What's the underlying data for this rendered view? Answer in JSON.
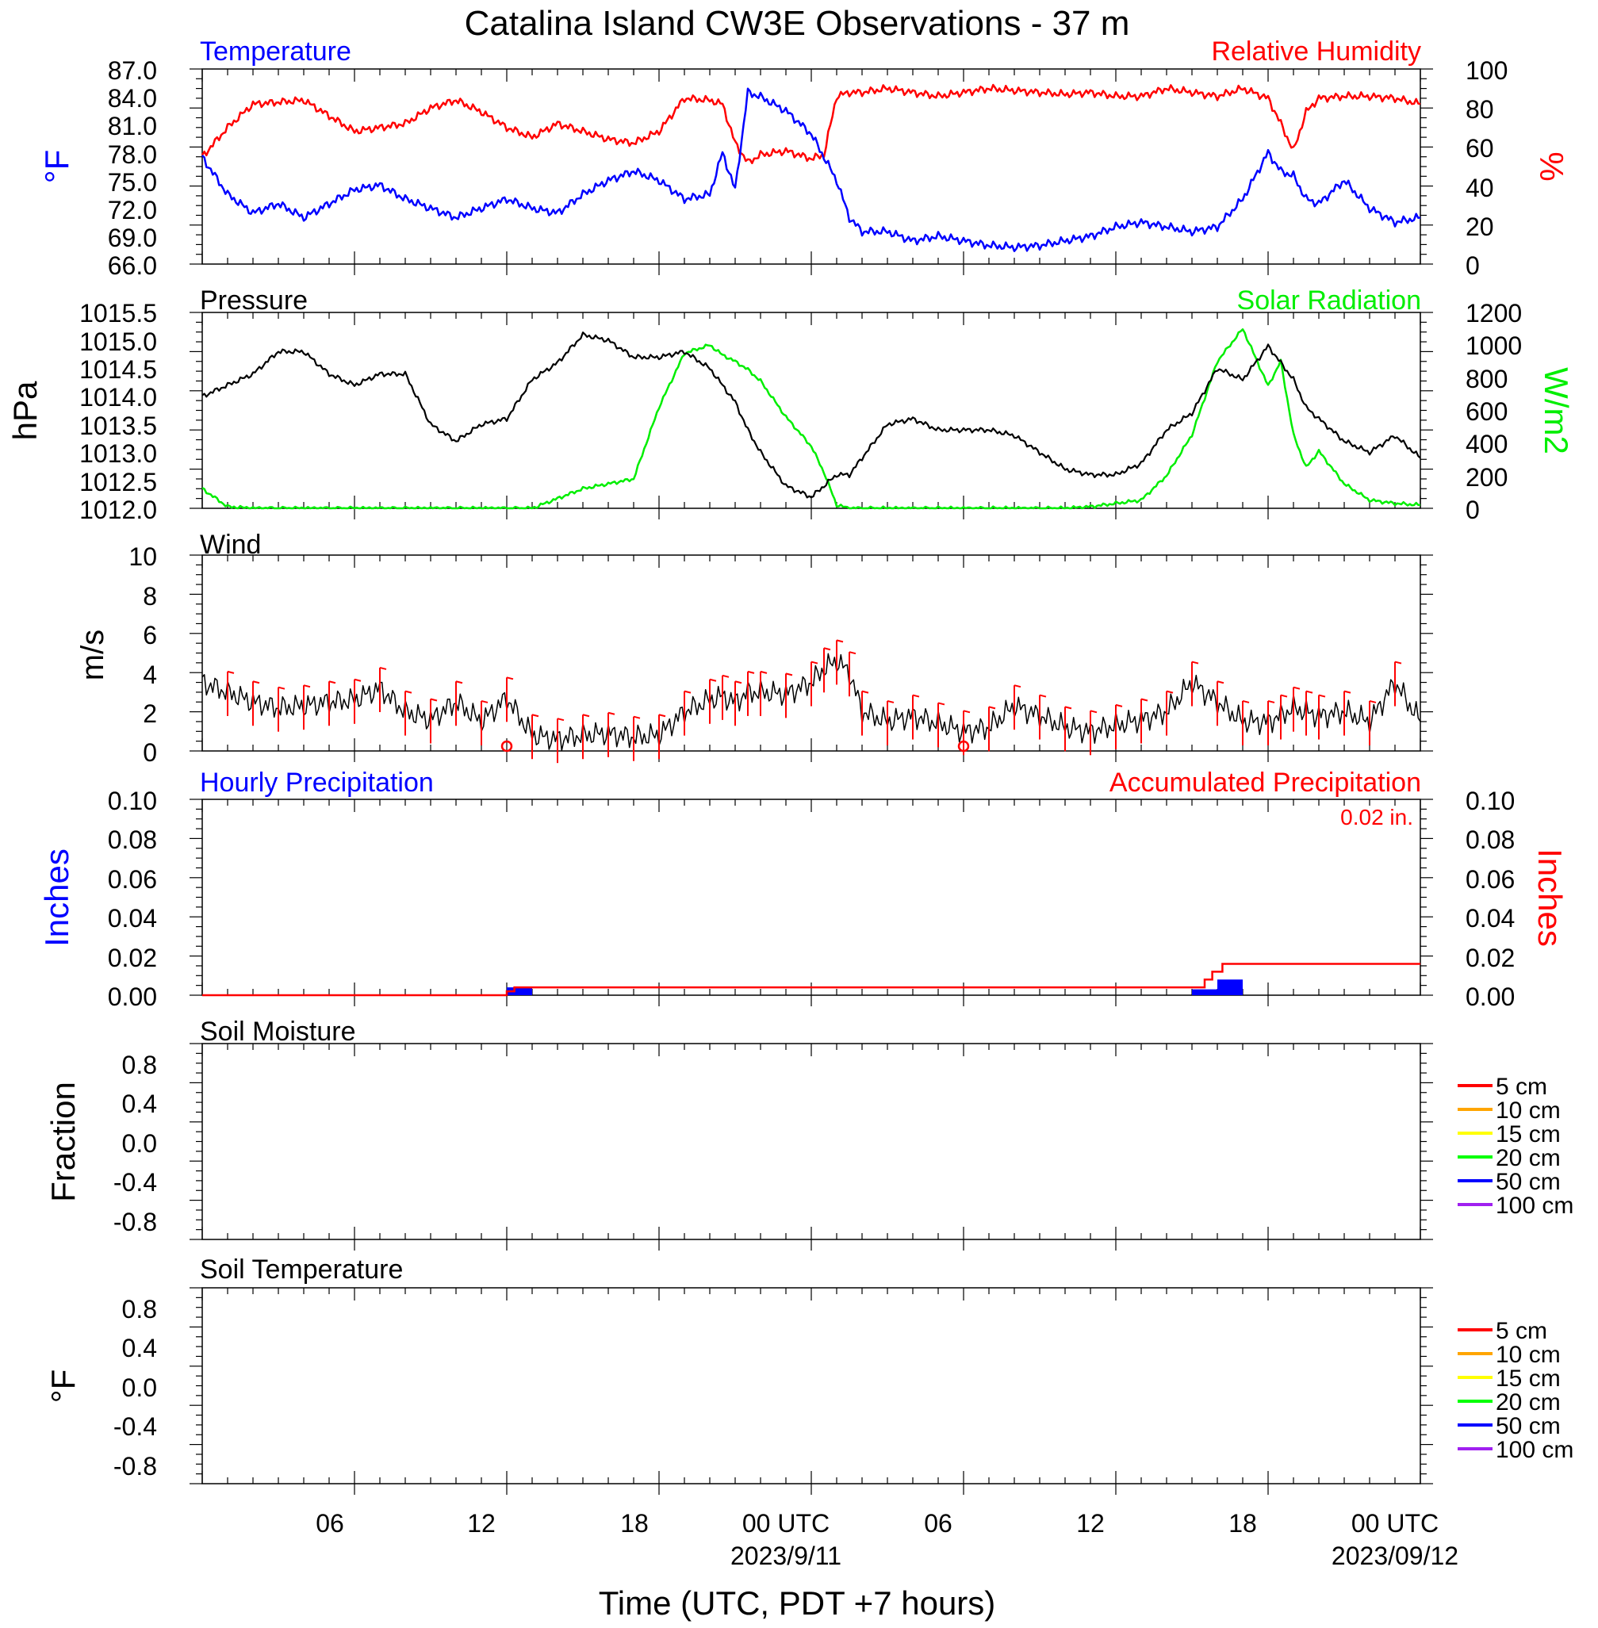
{
  "figure": {
    "title": "Catalina Island CW3E Observations - 37 m",
    "xlabel": "Time (UTC, PDT +7 hours)",
    "x_tick_labels": [
      "06",
      "12",
      "18",
      "00 UTC",
      "06",
      "12",
      "18",
      "00 UTC"
    ],
    "x_date_labels": [
      "2023/9/11",
      "2023/09/12"
    ],
    "colors": {
      "temperature": "#0000ff",
      "humidity": "#ff0000",
      "pressure": "#000000",
      "solar": "#00ee00",
      "wind": "#000000",
      "barb": "#ff0000",
      "hourly": "#0000ff",
      "accum": "#ff0000"
    }
  },
  "chart_data": [
    {
      "type": "line",
      "id": "temp-rh",
      "left_title": "Temperature",
      "right_title": "Relative Humidity",
      "ylabel_left": "°F",
      "ylabel_right": "%",
      "ylim_left": [
        66,
        87
      ],
      "ylim_right": [
        0,
        100
      ],
      "yticks_left": [
        "87.0",
        "84.0",
        "81.0",
        "78.0",
        "75.0",
        "72.0",
        "69.0",
        "66.0"
      ],
      "yticks_right": [
        "100",
        "80",
        "60",
        "40",
        "20",
        "0"
      ],
      "x_hours": [
        0,
        1,
        2,
        3,
        4,
        5,
        6,
        7,
        8,
        9,
        10,
        11,
        12,
        13,
        14,
        15,
        16,
        17,
        18,
        19,
        20,
        20.5,
        21,
        21.5,
        22,
        23,
        24,
        24.5,
        25,
        25.5,
        26,
        27,
        28,
        29,
        30,
        31,
        32,
        33,
        34,
        35,
        36,
        37,
        38,
        39,
        40,
        41,
        42,
        42.5,
        43,
        43.5,
        44,
        45,
        46,
        47,
        48
      ],
      "series": [
        {
          "name": "Temperature",
          "axis": "left",
          "values": [
            77.5,
            73.5,
            71.5,
            72.5,
            71.0,
            72.5,
            74.0,
            74.5,
            73.0,
            72.0,
            71.0,
            72.0,
            73.0,
            72.0,
            71.5,
            73.5,
            75.0,
            76.0,
            75.0,
            73.0,
            73.5,
            78.0,
            74.0,
            84.5,
            84.0,
            82.5,
            80.0,
            77.5,
            75.0,
            71.0,
            69.5,
            69.5,
            68.5,
            69.0,
            68.5,
            68.0,
            67.8,
            68.0,
            68.5,
            69.0,
            70.0,
            70.5,
            70.0,
            69.5,
            70.0,
            73.0,
            78.0,
            76.0,
            75.5,
            73.0,
            72.5,
            75.0,
            72.0,
            70.5,
            71.0
          ]
        },
        {
          "name": "Relative Humidity",
          "axis": "right",
          "values": [
            55,
            70,
            82,
            83,
            84,
            76,
            68,
            70,
            72,
            80,
            84,
            78,
            70,
            65,
            72,
            68,
            64,
            62,
            68,
            85,
            84,
            82,
            62,
            52,
            56,
            58,
            54,
            56,
            86,
            88,
            88,
            90,
            88,
            86,
            88,
            90,
            89,
            88,
            87,
            88,
            86,
            86,
            90,
            88,
            86,
            90,
            85,
            72,
            58,
            78,
            85,
            86,
            86,
            85,
            82
          ]
        }
      ]
    },
    {
      "type": "line",
      "id": "pressure-solar",
      "left_title": "Pressure",
      "right_title": "Solar Radiation",
      "ylabel_left": "hPa",
      "ylabel_right": "W/m2",
      "ylim_left": [
        1012.0,
        1015.5
      ],
      "ylim_right": [
        0,
        1200
      ],
      "yticks_left": [
        "1015.5",
        "1015.0",
        "1014.5",
        "1014.0",
        "1013.5",
        "1013.0",
        "1012.5",
        "1012.0"
      ],
      "yticks_right": [
        "1200",
        "1000",
        "800",
        "600",
        "400",
        "200",
        "0"
      ],
      "x_hours": [
        0,
        1,
        2,
        3,
        4,
        5,
        6,
        7,
        8,
        9,
        10,
        11,
        12,
        13,
        14,
        15,
        16,
        17,
        18,
        19,
        20,
        20.5,
        21,
        21.5,
        22,
        23,
        24,
        24.5,
        25,
        25.5,
        26,
        27,
        28,
        29,
        30,
        31,
        32,
        33,
        34,
        35,
        36,
        37,
        38,
        39,
        40,
        41,
        42,
        42.5,
        43,
        43.5,
        44,
        45,
        46,
        47,
        48
      ],
      "series": [
        {
          "name": "Pressure",
          "axis": "left",
          "values": [
            1014.0,
            1014.2,
            1014.4,
            1014.8,
            1014.8,
            1014.4,
            1014.2,
            1014.4,
            1014.4,
            1013.5,
            1013.2,
            1013.5,
            1013.6,
            1014.3,
            1014.6,
            1015.1,
            1015.0,
            1014.7,
            1014.7,
            1014.8,
            1014.5,
            1014.2,
            1013.9,
            1013.4,
            1013.0,
            1012.4,
            1012.2,
            1012.4,
            1012.6,
            1012.6,
            1012.9,
            1013.5,
            1013.6,
            1013.4,
            1013.4,
            1013.4,
            1013.3,
            1013.0,
            1012.7,
            1012.6,
            1012.6,
            1012.8,
            1013.4,
            1013.7,
            1014.5,
            1014.3,
            1014.9,
            1014.6,
            1014.3,
            1013.8,
            1013.6,
            1013.2,
            1013.0,
            1013.3,
            1012.9
          ]
        },
        {
          "name": "Solar Radiation",
          "axis": "right",
          "values": [
            120,
            10,
            0,
            0,
            0,
            0,
            0,
            0,
            0,
            0,
            0,
            0,
            0,
            0,
            60,
            120,
            150,
            180,
            620,
            950,
            1000,
            940,
            900,
            850,
            780,
            560,
            380,
            220,
            20,
            0,
            0,
            0,
            0,
            0,
            0,
            0,
            0,
            0,
            0,
            10,
            30,
            50,
            200,
            450,
            900,
            1100,
            750,
            900,
            450,
            250,
            350,
            150,
            50,
            30,
            20
          ]
        }
      ]
    },
    {
      "type": "line",
      "id": "wind",
      "left_title": "Wind",
      "ylabel_left": "m/s",
      "ylim_left": [
        0,
        10
      ],
      "yticks_left": [
        "10",
        "8",
        "6",
        "4",
        "2",
        "0"
      ],
      "x_hours": [
        0,
        1,
        2,
        3,
        4,
        5,
        6,
        7,
        8,
        9,
        10,
        11,
        12,
        13,
        14,
        15,
        16,
        17,
        18,
        19,
        20,
        20.5,
        21,
        21.5,
        22,
        23,
        24,
        24.5,
        25,
        25.5,
        26,
        27,
        28,
        29,
        30,
        31,
        32,
        33,
        34,
        35,
        36,
        37,
        38,
        39,
        40,
        41,
        42,
        42.5,
        43,
        43.5,
        44,
        45,
        46,
        47,
        48
      ],
      "series": [
        {
          "name": "Wind speed",
          "axis": "left",
          "values": [
            3.5,
            3.0,
            2.5,
            2.2,
            2.3,
            2.5,
            2.6,
            3.2,
            2.0,
            1.6,
            2.5,
            1.5,
            2.7,
            0.8,
            0.6,
            0.8,
            0.9,
            0.7,
            0.8,
            2.0,
            2.6,
            2.8,
            2.5,
            3.0,
            3.0,
            2.9,
            3.5,
            4.2,
            4.6,
            4.0,
            2.0,
            1.5,
            1.8,
            1.4,
            1.0,
            1.2,
            2.3,
            1.8,
            1.2,
            1.0,
            1.3,
            1.6,
            2.0,
            3.5,
            2.5,
            1.5,
            1.5,
            1.8,
            2.2,
            2.0,
            1.8,
            2.0,
            1.5,
            3.5,
            1.5
          ]
        }
      ]
    },
    {
      "type": "bar",
      "id": "precip",
      "left_title": "Hourly Precipitation",
      "right_title": "Accumulated Precipitation",
      "annotation": "0.02 in.",
      "ylabel_left": "Inches",
      "ylabel_right": "Inches",
      "ylim_left": [
        0,
        0.1
      ],
      "ylim_right": [
        0,
        0.1
      ],
      "yticks_left": [
        "0.10",
        "0.08",
        "0.06",
        "0.04",
        "0.02",
        "0.00"
      ],
      "yticks_right": [
        "0.10",
        "0.08",
        "0.06",
        "0.04",
        "0.02",
        "0.00"
      ],
      "hourly_bars": [
        {
          "x0": 12.0,
          "x1": 12.5,
          "value": 0.004
        },
        {
          "x0": 12.5,
          "x1": 13.0,
          "value": 0.004
        },
        {
          "x0": 39.0,
          "x1": 40.0,
          "value": 0.003
        },
        {
          "x0": 40.0,
          "x1": 41.0,
          "value": 0.008
        }
      ],
      "accumulated": {
        "x": [
          0,
          12.0,
          12.0,
          12.3,
          12.3,
          39.5,
          39.5,
          39.8,
          39.8,
          40.2,
          40.2,
          48
        ],
        "values": [
          0,
          0,
          0.002,
          0.002,
          0.004,
          0.004,
          0.008,
          0.008,
          0.012,
          0.012,
          0.016,
          0.016
        ]
      }
    },
    {
      "type": "line",
      "id": "soil-moisture",
      "left_title": "Soil Moisture",
      "ylabel_left": "Fraction",
      "ylim_left": [
        -1.0,
        1.0
      ],
      "yticks_left": [
        "0.8",
        "0.4",
        "0.0",
        "-0.4",
        "-0.8"
      ],
      "legend": {
        "position": "right",
        "entries": [
          {
            "name": "5 cm",
            "color": "#ff0000"
          },
          {
            "name": "10 cm",
            "color": "#ffa500"
          },
          {
            "name": "15 cm",
            "color": "#ffff00"
          },
          {
            "name": "20 cm",
            "color": "#00ff00"
          },
          {
            "name": "50 cm",
            "color": "#0000ff"
          },
          {
            "name": "100 cm",
            "color": "#a020f0"
          }
        ]
      },
      "series": []
    },
    {
      "type": "line",
      "id": "soil-temperature",
      "left_title": "Soil Temperature",
      "ylabel_left": "°F",
      "ylim_left": [
        -1.0,
        1.0
      ],
      "yticks_left": [
        "0.8",
        "0.4",
        "0.0",
        "-0.4",
        "-0.8"
      ],
      "legend": {
        "position": "right",
        "entries": [
          {
            "name": "5 cm",
            "color": "#ff0000"
          },
          {
            "name": "10 cm",
            "color": "#ffa500"
          },
          {
            "name": "15 cm",
            "color": "#ffff00"
          },
          {
            "name": "20 cm",
            "color": "#00ff00"
          },
          {
            "name": "50 cm",
            "color": "#0000ff"
          },
          {
            "name": "100 cm",
            "color": "#a020f0"
          }
        ]
      },
      "series": []
    }
  ]
}
